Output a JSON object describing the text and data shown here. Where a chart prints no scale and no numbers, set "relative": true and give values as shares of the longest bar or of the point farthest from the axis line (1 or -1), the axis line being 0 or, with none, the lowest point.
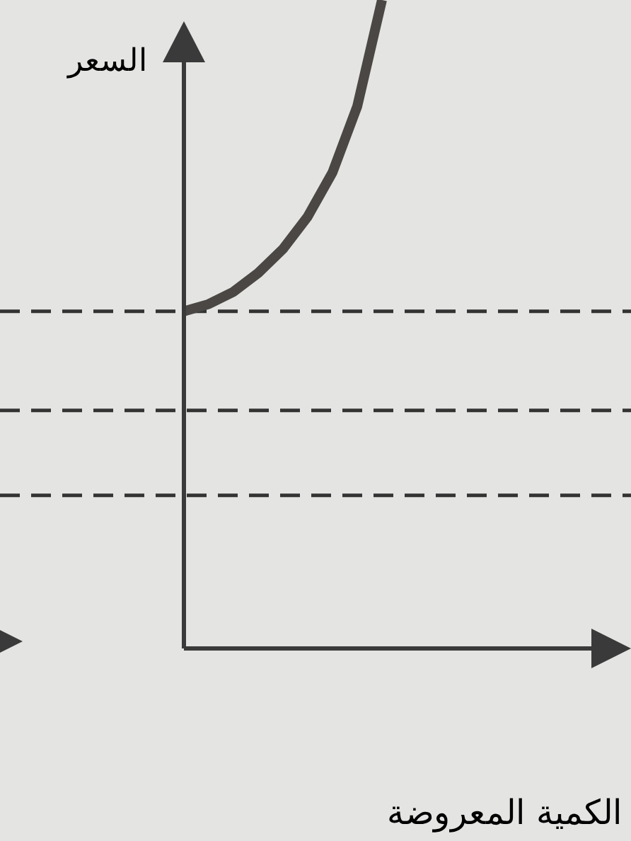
{
  "chart_data": {
    "type": "line",
    "relative": true,
    "xlabel": "الكمية المعروضة",
    "ylabel": "السعر",
    "categories": [
      null,
      null,
      null,
      null,
      null,
      null,
      null,
      null,
      null,
      null,
      null,
      null,
      null,
      null,
      null,
      null,
      null,
      null,
      null
    ],
    "series": [
      {
        "color": "#4a4744",
        "values": [
          0.52,
          0.531,
          0.55,
          0.579,
          0.616,
          0.666,
          0.734,
          0.836,
          1.0,
          null,
          null,
          null,
          null,
          null,
          null,
          null,
          null,
          null,
          null
        ]
      }
    ],
    "ref_lines": [
      {
        "axis": "y",
        "value": 0.52,
        "color": "#333333",
        "line_style": "dashed"
      },
      {
        "axis": "y",
        "value": 0.367,
        "color": "#333333",
        "line_style": "dashed"
      },
      {
        "axis": "y",
        "value": 0.236,
        "color": "#333333",
        "line_style": "dashed"
      }
    ],
    "marker": "none",
    "line_style": "solid"
  }
}
